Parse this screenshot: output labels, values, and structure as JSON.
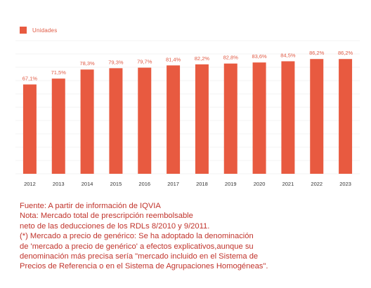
{
  "chart_data": {
    "type": "bar",
    "categories": [
      "2012",
      "2013",
      "2014",
      "2015",
      "2016",
      "2017",
      "2018",
      "2019",
      "2020",
      "2021",
      "2022",
      "2023"
    ],
    "series": [
      {
        "name": "Unidades",
        "values": [
          67.1,
          71.5,
          78.3,
          79.3,
          79.7,
          81.4,
          82.2,
          82.8,
          83.6,
          84.5,
          86.2,
          86.2
        ],
        "labels": [
          "67,1%",
          "71,5%",
          "78,3%",
          "79,3%",
          "79,7%",
          "81,4%",
          "82,2%",
          "82,8%",
          "83,6%",
          "84,5%",
          "86,2%",
          "86,2%"
        ]
      }
    ],
    "ylim": [
      0,
      100
    ],
    "grid": true,
    "legend_position": "top-left",
    "colors": {
      "bar": "#e85a40",
      "text": "#c0332b",
      "grid": "#f3f3f3"
    }
  },
  "notes": [
    "Fuente: A partir de información de IQVIA",
    "Nota: Mercado total de prescripción reembolsable",
    "neto de las deducciones de los RDLs 8/2010 y 9/2011.",
    "(*) Mercado a precio de genérico: Se ha adoptado la denominación",
    "de 'mercado a precio de genérico' a efectos explicativos,aunque su",
    "denominación más precisa sería \"mercado incluido en el Sistema de",
    "Precios de Referencia o en el Sistema de Agrupaciones Homogéneas\"."
  ]
}
